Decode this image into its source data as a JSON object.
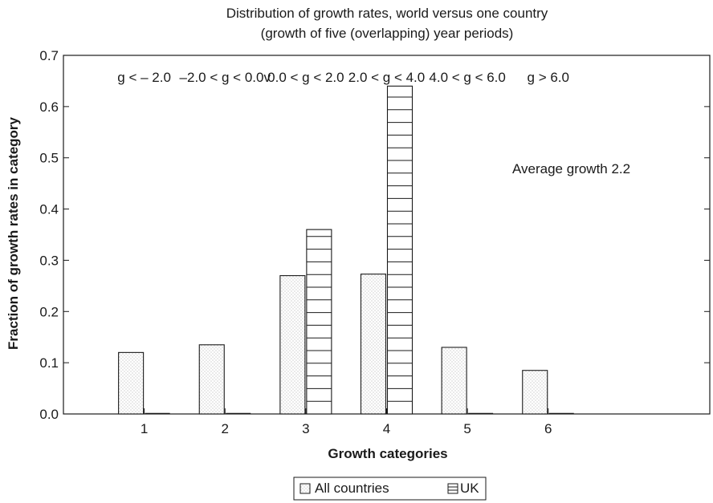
{
  "chart_data": {
    "type": "bar",
    "title": "Distribution of growth rates, world versus one country",
    "subtitle": "(growth of five (overlapping) year periods)",
    "xlabel": "Growth categories",
    "ylabel": "Fraction of growth rates in category",
    "categories": [
      "1",
      "2",
      "3",
      "4",
      "5",
      "6"
    ],
    "category_labels": [
      "g < – 2.0",
      "–2.0 < g < 0.0v",
      "0.0 < g < 2.0",
      "2.0 < g < 4.0",
      "4.0 < g < 6.0",
      "g > 6.0"
    ],
    "series": [
      {
        "name": "All countries",
        "pattern": "dots",
        "values": [
          0.12,
          0.135,
          0.27,
          0.273,
          0.13,
          0.085
        ]
      },
      {
        "name": "UK",
        "pattern": "horizontal-lines",
        "values": [
          0.0,
          0.0,
          0.36,
          0.64,
          0.0,
          0.0
        ]
      }
    ],
    "ylim": [
      0,
      0.7
    ],
    "xlim": [
      0,
      8
    ],
    "yticks": [
      "0.0",
      "0.1",
      "0.2",
      "0.3",
      "0.4",
      "0.5",
      "0.6",
      "0.7"
    ],
    "annotation": "Average growth 2.2",
    "grid": false,
    "legend_position": "bottom-center",
    "colors": {
      "ink": "#1a1a1a",
      "dot": "#9a9a9a",
      "background": "#ffffff"
    }
  }
}
